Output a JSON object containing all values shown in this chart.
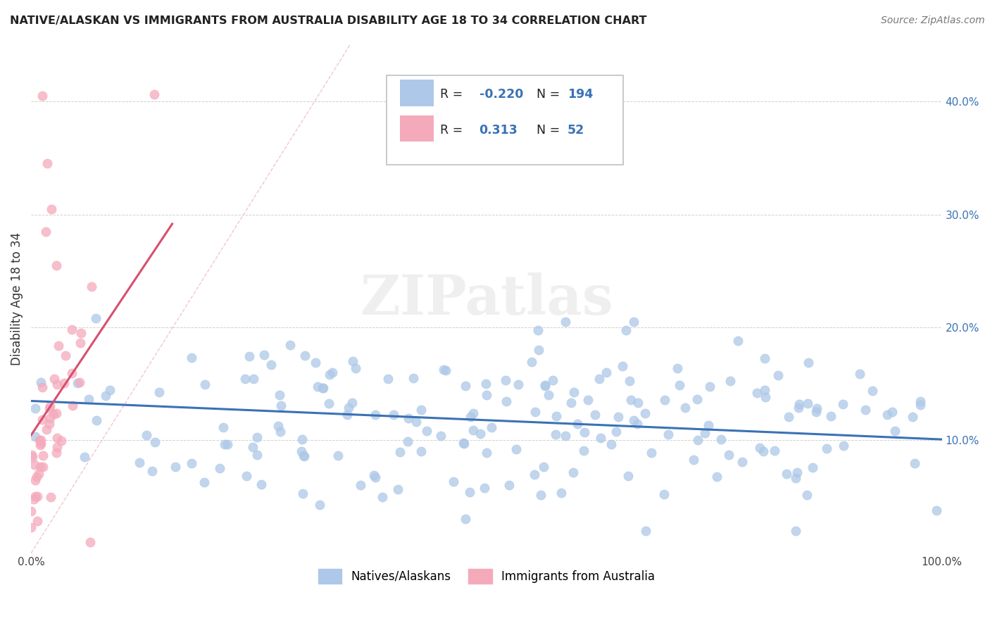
{
  "title": "NATIVE/ALASKAN VS IMMIGRANTS FROM AUSTRALIA DISABILITY AGE 18 TO 34 CORRELATION CHART",
  "source": "Source: ZipAtlas.com",
  "ylabel": "Disability Age 18 to 34",
  "blue_R": -0.22,
  "blue_N": 194,
  "pink_R": 0.313,
  "pink_N": 52,
  "blue_color": "#adc8e8",
  "pink_color": "#f5aabc",
  "blue_line_color": "#3a72b5",
  "pink_line_color": "#d94f6e",
  "background_color": "#ffffff",
  "grid_color": "#d0d0d0",
  "xmin": 0.0,
  "xmax": 1.0,
  "ymin": 0.0,
  "ymax": 0.45,
  "yticks": [
    0.0,
    0.1,
    0.2,
    0.3,
    0.4
  ],
  "ytick_labels": [
    "",
    "10.0%",
    "20.0%",
    "30.0%",
    "40.0%"
  ],
  "watermark": "ZIPatlas",
  "seed_blue": 42,
  "seed_pink": 123,
  "n_blue": 194,
  "n_pink": 52
}
